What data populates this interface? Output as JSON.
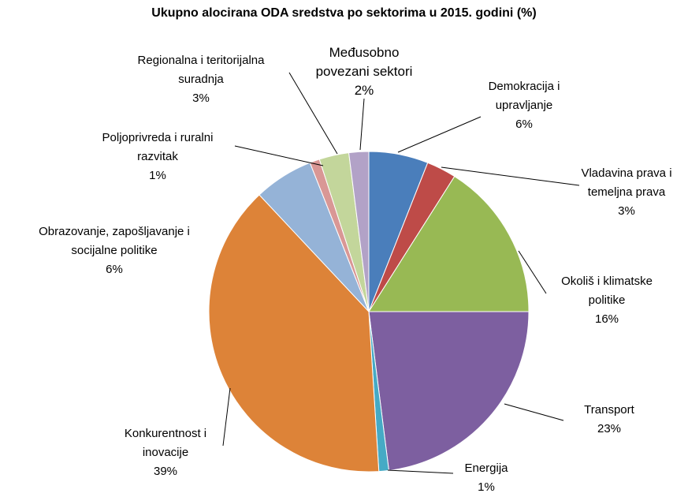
{
  "chart_data": {
    "type": "pie",
    "title": "Ukupno alocirana ODA sredstva po sektorima u 2015. godini (%)",
    "categories": [
      "Demokracija i upravljanje",
      "Vladavina prava i temeljna prava",
      "Okoliš i klimatske politike",
      "Transport",
      "Energija",
      "Konkurentnost i inovacije",
      "Obrazovanje, zapošljavanje i socijalne politike",
      "Poljoprivreda i ruralni razvitak",
      "Regionalna i teritorijalna suradnja",
      "Međusobno povezani sektori"
    ],
    "values": [
      6,
      3,
      16,
      23,
      1,
      39,
      6,
      1,
      3,
      2
    ],
    "value_labels": [
      "6%",
      "3%",
      "16%",
      "23%",
      "1%",
      "39%",
      "6%",
      "1%",
      "3%",
      "2%"
    ],
    "colors": [
      "#4a7ebb",
      "#be4b48",
      "#98b954",
      "#7d5fa0",
      "#46aac5",
      "#dd8338",
      "#95b3d7",
      "#d99795",
      "#c3d69b",
      "#b2a2c7"
    ]
  }
}
